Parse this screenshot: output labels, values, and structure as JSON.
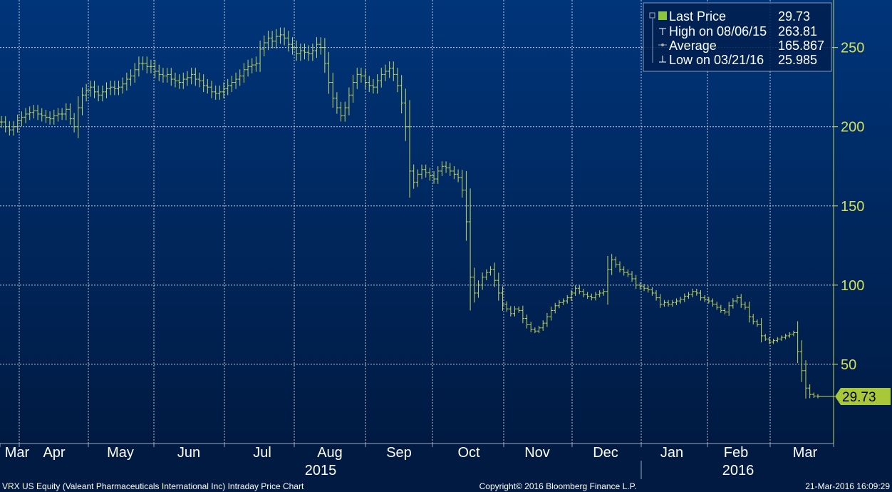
{
  "chart_data": {
    "type": "ohlc",
    "ticker_caption": "VRX US Equity (Valeant Pharmaceuticals International Inc) Intraday Price Chart",
    "copyright": "Copyright© 2016 Bloomberg Finance L.P.",
    "timestamp": "21-Mar-2016 16:09:29",
    "ylim": [
      0,
      280
    ],
    "yticks": [
      50,
      100,
      150,
      200,
      250
    ],
    "grid": true,
    "legend_position": "top-right",
    "legend": {
      "last_price": {
        "label": "Last Price",
        "value": "29.73"
      },
      "high": {
        "label": "High on 08/06/15",
        "value": "263.81"
      },
      "average": {
        "label": "Average",
        "value": "165.867"
      },
      "low": {
        "label": "Low on 03/21/16",
        "value": "25.985"
      }
    },
    "last_price_label": "29.73",
    "month_labels": [
      "Mar",
      "Apr",
      "May",
      "Jun",
      "Jul",
      "Aug",
      "Sep",
      "Oct",
      "Nov",
      "Dec",
      "Jan",
      "Feb",
      "Mar"
    ],
    "year_labels": [
      "2015",
      "2016"
    ],
    "colors": {
      "background_top": "#00357a",
      "background_bottom": "#001a42",
      "series": "#c6d85a",
      "grid": "#ffffff",
      "legend_marker": "#8cc63f",
      "axis_tick_text": "#d4e157",
      "last_price_box": "#a8c83a"
    },
    "series_close": [
      203,
      200,
      198,
      200,
      204,
      206,
      208,
      209,
      210,
      208,
      207,
      206,
      205,
      207,
      208,
      208,
      211,
      205,
      200,
      212,
      220,
      223,
      225,
      222,
      220,
      222,
      224,
      225,
      224,
      225,
      227,
      230,
      232,
      236,
      240,
      240,
      238,
      238,
      235,
      233,
      232,
      233,
      230,
      229,
      228,
      230,
      231,
      233,
      230,
      229,
      226,
      225,
      222,
      221,
      222,
      224,
      226,
      228,
      230,
      232,
      236,
      238,
      239,
      240,
      249,
      253,
      256,
      254,
      257,
      258,
      256,
      252,
      250,
      246,
      248,
      247,
      246,
      248,
      252,
      250,
      240,
      228,
      218,
      212,
      207,
      212,
      220,
      228,
      233,
      232,
      228,
      226,
      225,
      229,
      233,
      235,
      237,
      233,
      226,
      215,
      200,
      172,
      165,
      170,
      173,
      171,
      169,
      167,
      172,
      175,
      174,
      172,
      170,
      168,
      160,
      140,
      105,
      95,
      100,
      105,
      108,
      110,
      103,
      95,
      88,
      85,
      82,
      85,
      84,
      79,
      75,
      72,
      71,
      73,
      76,
      80,
      84,
      87,
      89,
      90,
      92,
      95,
      98,
      96,
      94,
      93,
      92,
      94,
      95,
      96,
      110,
      116,
      113,
      110,
      108,
      107,
      104,
      100,
      99,
      98,
      97,
      95,
      92,
      88,
      89,
      88,
      89,
      90,
      91,
      93,
      94,
      96,
      95,
      92,
      91,
      90,
      88,
      86,
      84,
      83,
      87,
      90,
      92,
      88,
      86,
      80,
      77,
      75,
      68,
      66,
      64,
      65,
      66,
      67,
      68,
      69,
      70,
      58,
      46,
      35,
      31,
      30,
      29.73
    ]
  }
}
